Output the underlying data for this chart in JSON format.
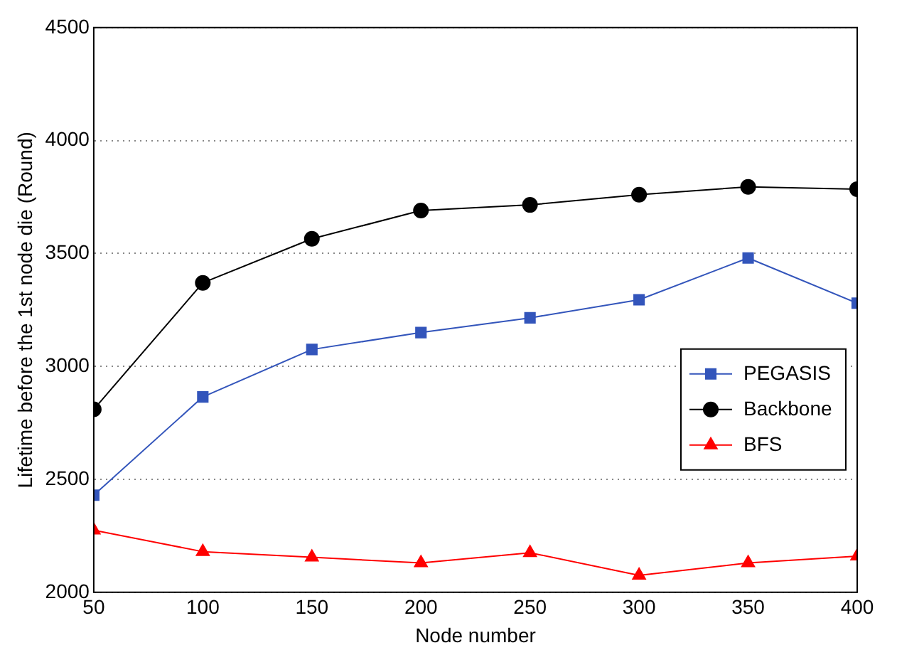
{
  "chart_data": {
    "type": "line",
    "xlabel": "Node number",
    "ylabel": "Lifetime before the 1st node die (Round)",
    "x": [
      50,
      100,
      150,
      200,
      250,
      300,
      350,
      400
    ],
    "series": [
      {
        "name": "PEGASIS",
        "color": "#3355bb",
        "marker": "square",
        "values": [
          2430,
          2865,
          3075,
          3150,
          3215,
          3295,
          3480,
          3280
        ]
      },
      {
        "name": "Backbone",
        "color": "#000000",
        "marker": "circle",
        "values": [
          2810,
          3370,
          3565,
          3690,
          3715,
          3760,
          3795,
          3785
        ]
      },
      {
        "name": "BFS",
        "color": "#ff0000",
        "marker": "triangle",
        "values": [
          2275,
          2180,
          2155,
          2130,
          2175,
          2075,
          2130,
          2160
        ]
      }
    ],
    "xlim": [
      50,
      400
    ],
    "xticks": [
      50,
      100,
      150,
      200,
      250,
      300,
      350,
      400
    ],
    "ylim": [
      2000,
      4500
    ],
    "yticks": [
      2000,
      2500,
      3000,
      3500,
      4000,
      4500
    ],
    "grid": "y",
    "legend": "right"
  }
}
